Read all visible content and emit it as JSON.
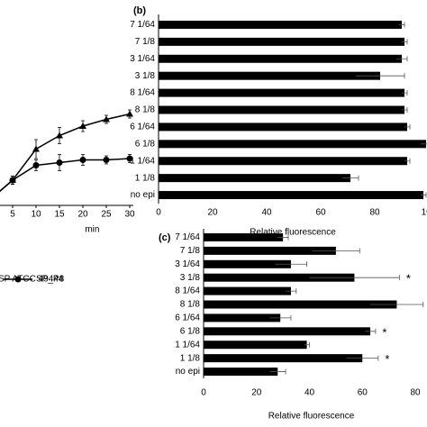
{
  "chart_data": [
    {
      "type": "line",
      "xlabel": "min",
      "x": [
        0,
        5,
        10,
        15,
        20,
        25,
        30
      ],
      "xticks": [
        0,
        5,
        10,
        15,
        20,
        25,
        30
      ],
      "xlim": [
        0,
        30
      ],
      "ylim": [
        0,
        100
      ],
      "series": [
        {
          "name": "SP ATCC 49444",
          "marker": "triangle",
          "color": "#000000",
          "values": [
            15,
            30,
            53,
            63,
            70,
            75,
            79
          ],
          "errors": [
            2,
            3,
            7,
            6,
            4,
            3,
            3
          ]
        },
        {
          "name": "SP_P8",
          "marker": "circle",
          "color": "#000000",
          "values": [
            15,
            30,
            41,
            43,
            45,
            45,
            46
          ],
          "errors": [
            2,
            3,
            4,
            6,
            4,
            3,
            3
          ]
        }
      ]
    },
    {
      "type": "hbar",
      "panel": "(b)",
      "xlabel": "Relative fluorescence",
      "categories": [
        "7 1/64",
        "7 1/8",
        "3 1/64",
        "3 1/8",
        "8 1/64",
        "8 1/8",
        "6 1/64",
        "6 1/8",
        "1 1/64",
        "1 1/8",
        "no epi"
      ],
      "values": [
        90,
        91,
        90,
        82,
        91,
        91,
        92,
        99,
        92,
        71,
        98
      ],
      "errors": [
        1,
        1,
        2,
        9,
        1,
        1,
        1,
        2,
        1,
        3,
        1
      ],
      "color": "#000000",
      "xlim": [
        0,
        100
      ],
      "xticks": [
        0,
        20,
        40,
        60,
        80,
        100
      ]
    },
    {
      "type": "hbar",
      "panel": "(c)",
      "xlabel": "Relative fluorescence",
      "categories": [
        "7 1/64",
        "7 1/8",
        "3 1/64",
        "3 1/8",
        "8 1/64",
        "8 1/8",
        "6 1/64",
        "6 1/8",
        "1 1/64",
        "1 1/8",
        "no epi"
      ],
      "values": [
        30,
        50,
        33,
        57,
        33,
        73,
        29,
        63,
        39,
        60,
        28
      ],
      "errors": [
        2,
        9,
        6,
        17,
        2,
        10,
        4,
        2,
        1,
        6,
        3
      ],
      "markers": [
        null,
        null,
        null,
        "*",
        null,
        null,
        null,
        "*",
        null,
        "*",
        null
      ],
      "color": "#000000",
      "xlim": [
        0,
        80
      ],
      "xticks": [
        0,
        20,
        40,
        60,
        80
      ]
    }
  ]
}
